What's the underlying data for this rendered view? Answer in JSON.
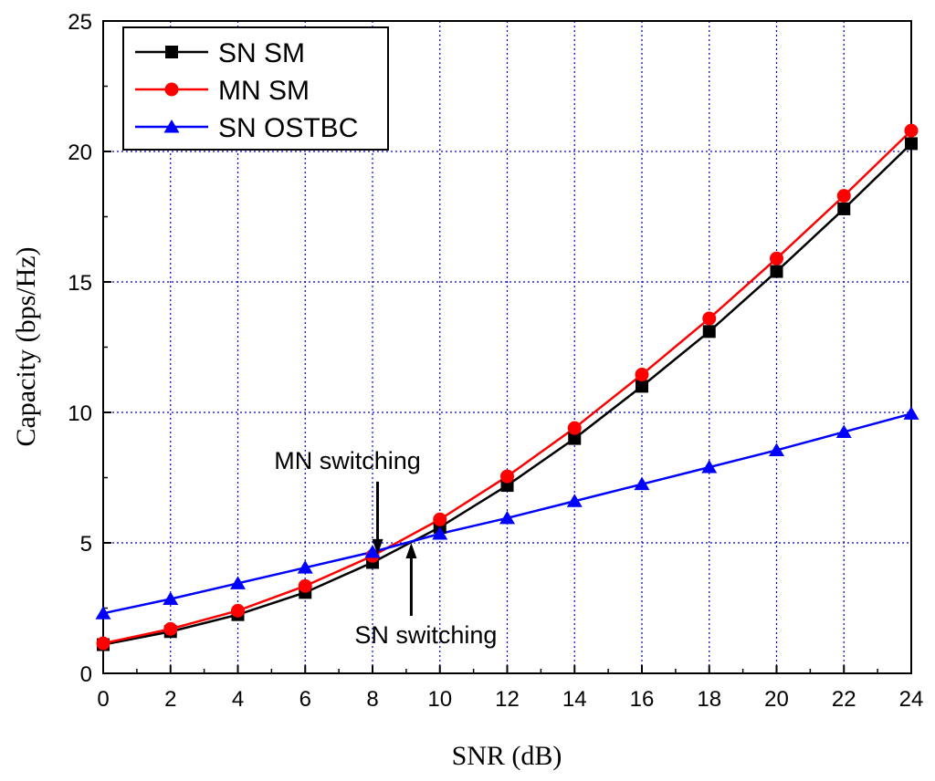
{
  "chart_data": {
    "type": "line",
    "xlabel": "SNR (dB)",
    "ylabel": "Capacity (bps/Hz)",
    "xlim": [
      0,
      24
    ],
    "ylim": [
      0,
      25
    ],
    "xticks": [
      0,
      2,
      4,
      6,
      8,
      10,
      12,
      14,
      16,
      18,
      20,
      22,
      24
    ],
    "yticks": [
      0,
      5,
      10,
      15,
      20,
      25
    ],
    "grid": true,
    "legend_position": "top-left",
    "x": [
      0,
      2,
      4,
      6,
      8,
      10,
      12,
      14,
      16,
      18,
      20,
      22,
      24
    ],
    "series": [
      {
        "name": "SN SM",
        "marker": "square",
        "color": "#000000",
        "values": [
          1.1,
          1.6,
          2.25,
          3.1,
          4.25,
          5.6,
          7.2,
          9.0,
          11.0,
          13.1,
          15.4,
          17.8,
          20.3
        ]
      },
      {
        "name": "MN SM",
        "marker": "circle",
        "color": "#ff0000",
        "values": [
          1.15,
          1.7,
          2.4,
          3.35,
          4.5,
          5.9,
          7.55,
          9.4,
          11.45,
          13.6,
          15.9,
          18.3,
          20.8
        ]
      },
      {
        "name": "SN OSTBC",
        "marker": "triangle",
        "color": "#0000ff",
        "values": [
          2.3,
          2.85,
          3.45,
          4.05,
          4.65,
          5.35,
          5.95,
          6.6,
          7.25,
          7.9,
          8.55,
          9.25,
          9.95
        ]
      }
    ],
    "annotations": [
      {
        "text": "MN switching",
        "arrow_to": [
          8.15,
          4.55
        ],
        "direction": "down"
      },
      {
        "text": "SN switching",
        "arrow_to": [
          9.15,
          5.0
        ],
        "direction": "up"
      }
    ]
  },
  "colors": {
    "grid": "#0000cc",
    "axis": "#000000"
  }
}
